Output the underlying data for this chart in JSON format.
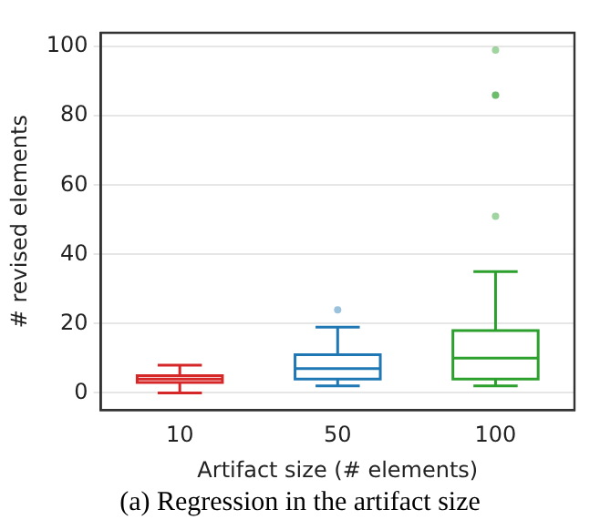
{
  "chart_data": {
    "type": "box",
    "xlabel": "Artifact size (# elements)",
    "ylabel": "# revised elements",
    "categories": [
      "10",
      "50",
      "100"
    ],
    "colors": [
      "#d62728",
      "#1f77b4",
      "#2ca02c"
    ],
    "boxes": [
      {
        "low": 0,
        "q1": 3,
        "median": 4,
        "q3": 5,
        "high": 8
      },
      {
        "low": 2,
        "q1": 4,
        "median": 7,
        "q3": 11,
        "high": 19,
        "outliers": [
          24
        ]
      },
      {
        "low": 2,
        "q1": 4,
        "median": 10,
        "q3": 18,
        "high": 35,
        "outliers": [
          51,
          86,
          86,
          99
        ]
      }
    ],
    "ylim": [
      -5,
      104
    ],
    "yticks": [
      0,
      20,
      40,
      60,
      80,
      100
    ],
    "grid": "y",
    "annotations": [
      "(a) Regression in the artifact size"
    ]
  }
}
